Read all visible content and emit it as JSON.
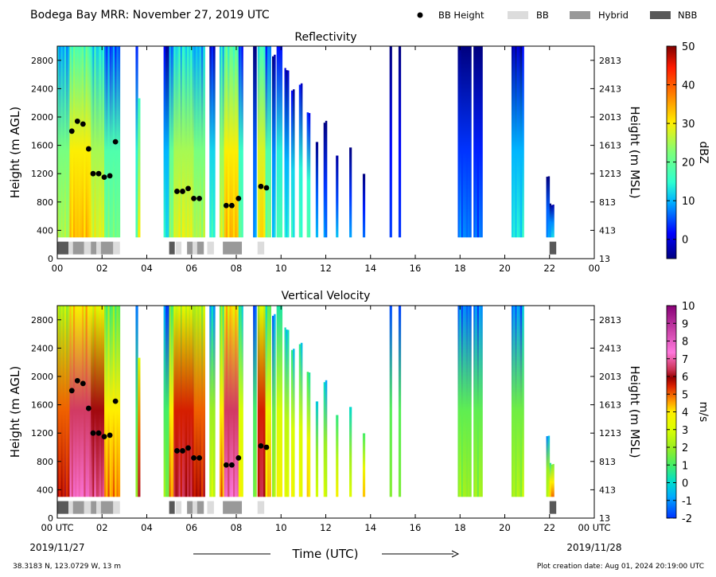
{
  "header": {
    "title": "Bodega Bay MRR:  November 27, 2019 UTC",
    "legend": [
      {
        "label": "BB Height",
        "marker": "dot",
        "color": "#000000"
      },
      {
        "label": "BB",
        "marker": "box",
        "color": "#dcdcdc"
      },
      {
        "label": "Hybrid",
        "marker": "box",
        "color": "#999999"
      },
      {
        "label": "NBB",
        "marker": "box",
        "color": "#595959"
      }
    ]
  },
  "footer": {
    "location": "38.3183 N, 123.0729 W, 13 m",
    "creation": "Plot creation date: Aug 01, 2024 20:19:00 UTC",
    "time_label": "Time (UTC)",
    "start_date": "2019/11/27",
    "end_date": "2019/11/28"
  },
  "chart_data": [
    {
      "type": "heatmap",
      "title": "Reflectivity",
      "xlabel": "",
      "ylabel": "Height (m AGL)",
      "ylabel_right": "Height (m MSL)",
      "colorbar_label": "dBZ",
      "xlim": [
        0,
        24
      ],
      "ylim": [
        0,
        3000
      ],
      "x_ticks": [
        "00",
        "02",
        "04",
        "06",
        "08",
        "10",
        "12",
        "14",
        "16",
        "18",
        "20",
        "22",
        "00"
      ],
      "y_ticks": [
        0,
        400,
        800,
        1200,
        1600,
        2000,
        2400,
        2800
      ],
      "y_ticks_right": [
        "13",
        "413",
        "813",
        "1213",
        "1613",
        "2013",
        "2413",
        "2813"
      ],
      "colorbar": {
        "min": -5,
        "max": 50,
        "ticks": [
          0,
          10,
          20,
          30,
          40,
          50
        ]
      },
      "bb_height": {
        "x": [
          0.65,
          0.9,
          1.15,
          1.4,
          1.6,
          1.85,
          2.1,
          2.35,
          2.6,
          5.35,
          5.6,
          5.85,
          6.1,
          6.35,
          7.55,
          7.8,
          8.1,
          9.1,
          9.35
        ],
        "y": [
          1800,
          1940,
          1900,
          1550,
          1200,
          1200,
          1150,
          1170,
          1650,
          950,
          950,
          990,
          850,
          850,
          750,
          750,
          850,
          1020,
          1000
        ]
      },
      "bb_type_bar": [
        {
          "start": 0.0,
          "end": 0.5,
          "type": "NBB"
        },
        {
          "start": 0.5,
          "end": 0.7,
          "type": "BB"
        },
        {
          "start": 0.7,
          "end": 1.2,
          "type": "Hybrid"
        },
        {
          "start": 1.2,
          "end": 1.5,
          "type": "BB"
        },
        {
          "start": 1.5,
          "end": 1.75,
          "type": "Hybrid"
        },
        {
          "start": 1.75,
          "end": 1.95,
          "type": "BB"
        },
        {
          "start": 1.95,
          "end": 2.5,
          "type": "Hybrid"
        },
        {
          "start": 2.5,
          "end": 2.8,
          "type": "BB"
        },
        {
          "start": 5.0,
          "end": 5.25,
          "type": "NBB"
        },
        {
          "start": 5.3,
          "end": 5.55,
          "type": "BB"
        },
        {
          "start": 5.8,
          "end": 6.05,
          "type": "Hybrid"
        },
        {
          "start": 6.05,
          "end": 6.25,
          "type": "BB"
        },
        {
          "start": 6.25,
          "end": 6.55,
          "type": "Hybrid"
        },
        {
          "start": 6.7,
          "end": 7.0,
          "type": "BB"
        },
        {
          "start": 7.4,
          "end": 8.25,
          "type": "Hybrid"
        },
        {
          "start": 8.95,
          "end": 9.25,
          "type": "BB"
        },
        {
          "start": 22.0,
          "end": 22.3,
          "type": "NBB"
        }
      ],
      "precip_columns": [
        {
          "x0": 0.0,
          "x1": 0.55,
          "top": 3000,
          "v": 22
        },
        {
          "x0": 0.55,
          "x1": 1.5,
          "top": 3000,
          "v": 30
        },
        {
          "x0": 1.5,
          "x1": 2.1,
          "top": 3000,
          "v": 25
        },
        {
          "x0": 2.1,
          "x1": 2.8,
          "top": 3000,
          "v": 18
        },
        {
          "x0": 3.5,
          "x1": 3.6,
          "top": 3000,
          "v": 14
        },
        {
          "x0": 3.6,
          "x1": 3.7,
          "top": 2300,
          "v": 25
        },
        {
          "x0": 4.75,
          "x1": 5.0,
          "top": 3000,
          "v": 10
        },
        {
          "x0": 5.0,
          "x1": 5.2,
          "top": 3000,
          "v": 20
        },
        {
          "x0": 5.2,
          "x1": 6.1,
          "top": 3000,
          "v": 25
        },
        {
          "x0": 6.1,
          "x1": 6.6,
          "top": 3000,
          "v": 22
        },
        {
          "x0": 6.8,
          "x1": 7.05,
          "top": 3000,
          "v": 12
        },
        {
          "x0": 7.25,
          "x1": 7.45,
          "top": 3000,
          "v": 24
        },
        {
          "x0": 7.45,
          "x1": 8.1,
          "top": 3000,
          "v": 30
        },
        {
          "x0": 8.1,
          "x1": 8.3,
          "top": 3000,
          "v": 16
        },
        {
          "x0": 8.75,
          "x1": 8.9,
          "top": 3000,
          "v": 6
        },
        {
          "x0": 8.95,
          "x1": 9.3,
          "top": 3000,
          "v": 28
        },
        {
          "x0": 9.3,
          "x1": 9.55,
          "top": 3000,
          "v": 18
        },
        {
          "x0": 9.6,
          "x1": 9.75,
          "top": 2900,
          "v": 8
        },
        {
          "x0": 9.8,
          "x1": 10.05,
          "top": 3000,
          "v": 14
        },
        {
          "x0": 10.15,
          "x1": 10.35,
          "top": 2700,
          "v": 10
        },
        {
          "x0": 10.45,
          "x1": 10.6,
          "top": 2400,
          "v": 12
        },
        {
          "x0": 10.8,
          "x1": 10.95,
          "top": 2500,
          "v": 14
        },
        {
          "x0": 11.15,
          "x1": 11.3,
          "top": 2100,
          "v": 15
        },
        {
          "x0": 11.55,
          "x1": 11.65,
          "top": 1650,
          "v": 6
        },
        {
          "x0": 11.9,
          "x1": 12.05,
          "top": 1950,
          "v": 4
        },
        {
          "x0": 12.45,
          "x1": 12.55,
          "top": 1500,
          "v": 5
        },
        {
          "x0": 13.05,
          "x1": 13.15,
          "top": 1600,
          "v": 4
        },
        {
          "x0": 13.65,
          "x1": 13.75,
          "top": 1200,
          "v": 3
        },
        {
          "x0": 14.85,
          "x1": 14.95,
          "top": 3000,
          "v": 2
        },
        {
          "x0": 15.25,
          "x1": 15.35,
          "top": 3000,
          "v": 2
        },
        {
          "x0": 17.9,
          "x1": 18.5,
          "top": 3000,
          "v": 4
        },
        {
          "x0": 18.6,
          "x1": 19.0,
          "top": 3000,
          "v": 3
        },
        {
          "x0": 20.3,
          "x1": 20.85,
          "top": 3000,
          "v": 10
        },
        {
          "x0": 21.85,
          "x1": 22.0,
          "top": 1200,
          "v": 6
        },
        {
          "x0": 22.0,
          "x1": 22.2,
          "top": 800,
          "v": 8
        }
      ]
    },
    {
      "type": "heatmap",
      "title": "Vertical Velocity",
      "xlabel": "Time (UTC)",
      "ylabel": "Height (m AGL)",
      "ylabel_right": "Height (m MSL)",
      "colorbar_label": "m/s",
      "xlim": [
        0,
        24
      ],
      "ylim": [
        0,
        3000
      ],
      "x_ticks": [
        "00 UTC",
        "02",
        "04",
        "06",
        "08",
        "10",
        "12",
        "14",
        "16",
        "18",
        "20",
        "22",
        "00 UTC"
      ],
      "y_ticks": [
        0,
        400,
        800,
        1200,
        1600,
        2000,
        2400,
        2800
      ],
      "y_ticks_right": [
        "13",
        "413",
        "813",
        "1213",
        "1613",
        "2013",
        "2413",
        "2813"
      ],
      "colorbar": {
        "min": -2,
        "max": 10,
        "ticks": [
          -2,
          -1,
          0,
          1,
          2,
          3,
          4,
          5,
          6,
          7,
          8,
          9,
          10
        ]
      },
      "bb_height": {
        "x": [
          0.65,
          0.9,
          1.15,
          1.4,
          1.6,
          1.85,
          2.1,
          2.35,
          2.6,
          5.35,
          5.6,
          5.85,
          6.1,
          6.35,
          7.55,
          7.8,
          8.1,
          9.1,
          9.35
        ],
        "y": [
          1800,
          1940,
          1900,
          1550,
          1200,
          1200,
          1150,
          1170,
          1650,
          950,
          950,
          990,
          850,
          850,
          750,
          750,
          850,
          1020,
          1000
        ]
      },
      "bb_type_bar": [
        {
          "start": 0.0,
          "end": 0.5,
          "type": "NBB"
        },
        {
          "start": 0.5,
          "end": 0.7,
          "type": "BB"
        },
        {
          "start": 0.7,
          "end": 1.2,
          "type": "Hybrid"
        },
        {
          "start": 1.2,
          "end": 1.5,
          "type": "BB"
        },
        {
          "start": 1.5,
          "end": 1.75,
          "type": "Hybrid"
        },
        {
          "start": 1.75,
          "end": 1.95,
          "type": "BB"
        },
        {
          "start": 1.95,
          "end": 2.5,
          "type": "Hybrid"
        },
        {
          "start": 2.5,
          "end": 2.8,
          "type": "BB"
        },
        {
          "start": 5.0,
          "end": 5.25,
          "type": "NBB"
        },
        {
          "start": 5.3,
          "end": 5.55,
          "type": "BB"
        },
        {
          "start": 5.8,
          "end": 6.05,
          "type": "Hybrid"
        },
        {
          "start": 6.05,
          "end": 6.25,
          "type": "BB"
        },
        {
          "start": 6.25,
          "end": 6.55,
          "type": "Hybrid"
        },
        {
          "start": 6.7,
          "end": 7.0,
          "type": "BB"
        },
        {
          "start": 7.4,
          "end": 8.25,
          "type": "Hybrid"
        },
        {
          "start": 8.95,
          "end": 9.25,
          "type": "BB"
        },
        {
          "start": 22.0,
          "end": 22.3,
          "type": "NBB"
        }
      ],
      "precip_columns": [
        {
          "x0": 0.0,
          "x1": 0.55,
          "top": 3000,
          "v": 5
        },
        {
          "x0": 0.55,
          "x1": 1.5,
          "top": 3000,
          "v": 6.5
        },
        {
          "x0": 1.5,
          "x1": 2.1,
          "top": 3000,
          "v": 6
        },
        {
          "x0": 2.1,
          "x1": 2.8,
          "top": 3000,
          "v": 4
        },
        {
          "x0": 3.5,
          "x1": 3.6,
          "top": 3000,
          "v": 1
        },
        {
          "x0": 3.6,
          "x1": 3.7,
          "top": 2300,
          "v": 5
        },
        {
          "x0": 4.75,
          "x1": 5.0,
          "top": 3000,
          "v": 1
        },
        {
          "x0": 5.0,
          "x1": 5.2,
          "top": 3000,
          "v": 4
        },
        {
          "x0": 5.2,
          "x1": 6.1,
          "top": 3000,
          "v": 5.5
        },
        {
          "x0": 6.1,
          "x1": 6.6,
          "top": 3000,
          "v": 5
        },
        {
          "x0": 6.8,
          "x1": 7.05,
          "top": 3000,
          "v": 2
        },
        {
          "x0": 7.25,
          "x1": 7.45,
          "top": 3000,
          "v": 4
        },
        {
          "x0": 7.45,
          "x1": 8.1,
          "top": 3000,
          "v": 6.5
        },
        {
          "x0": 8.1,
          "x1": 8.3,
          "top": 3000,
          "v": 3
        },
        {
          "x0": 8.75,
          "x1": 8.9,
          "top": 3000,
          "v": 1
        },
        {
          "x0": 8.95,
          "x1": 9.3,
          "top": 3000,
          "v": 5.5
        },
        {
          "x0": 9.3,
          "x1": 9.55,
          "top": 3000,
          "v": 3.5
        },
        {
          "x0": 9.6,
          "x1": 9.75,
          "top": 2900,
          "v": 1.5
        },
        {
          "x0": 9.8,
          "x1": 10.05,
          "top": 3000,
          "v": 3
        },
        {
          "x0": 10.15,
          "x1": 10.35,
          "top": 2700,
          "v": 2.5
        },
        {
          "x0": 10.45,
          "x1": 10.6,
          "top": 2400,
          "v": 3
        },
        {
          "x0": 10.8,
          "x1": 10.95,
          "top": 2500,
          "v": 3
        },
        {
          "x0": 11.15,
          "x1": 11.3,
          "top": 2100,
          "v": 3.5
        },
        {
          "x0": 11.55,
          "x1": 11.65,
          "top": 1650,
          "v": 2
        },
        {
          "x0": 11.9,
          "x1": 12.05,
          "top": 1950,
          "v": 2
        },
        {
          "x0": 12.45,
          "x1": 12.55,
          "top": 1500,
          "v": 2.5
        },
        {
          "x0": 13.05,
          "x1": 13.15,
          "top": 1600,
          "v": 2
        },
        {
          "x0": 13.65,
          "x1": 13.75,
          "top": 1200,
          "v": 3.5
        },
        {
          "x0": 14.85,
          "x1": 14.95,
          "top": 3000,
          "v": 1.2
        },
        {
          "x0": 15.25,
          "x1": 15.35,
          "top": 3000,
          "v": 1.2
        },
        {
          "x0": 17.9,
          "x1": 18.5,
          "top": 3000,
          "v": 1.3
        },
        {
          "x0": 18.6,
          "x1": 19.0,
          "top": 3000,
          "v": 1.3
        },
        {
          "x0": 20.3,
          "x1": 20.85,
          "top": 3000,
          "v": 1.5
        },
        {
          "x0": 21.85,
          "x1": 22.0,
          "top": 1200,
          "v": 2
        },
        {
          "x0": 22.0,
          "x1": 22.2,
          "top": 800,
          "v": 4
        }
      ]
    }
  ]
}
